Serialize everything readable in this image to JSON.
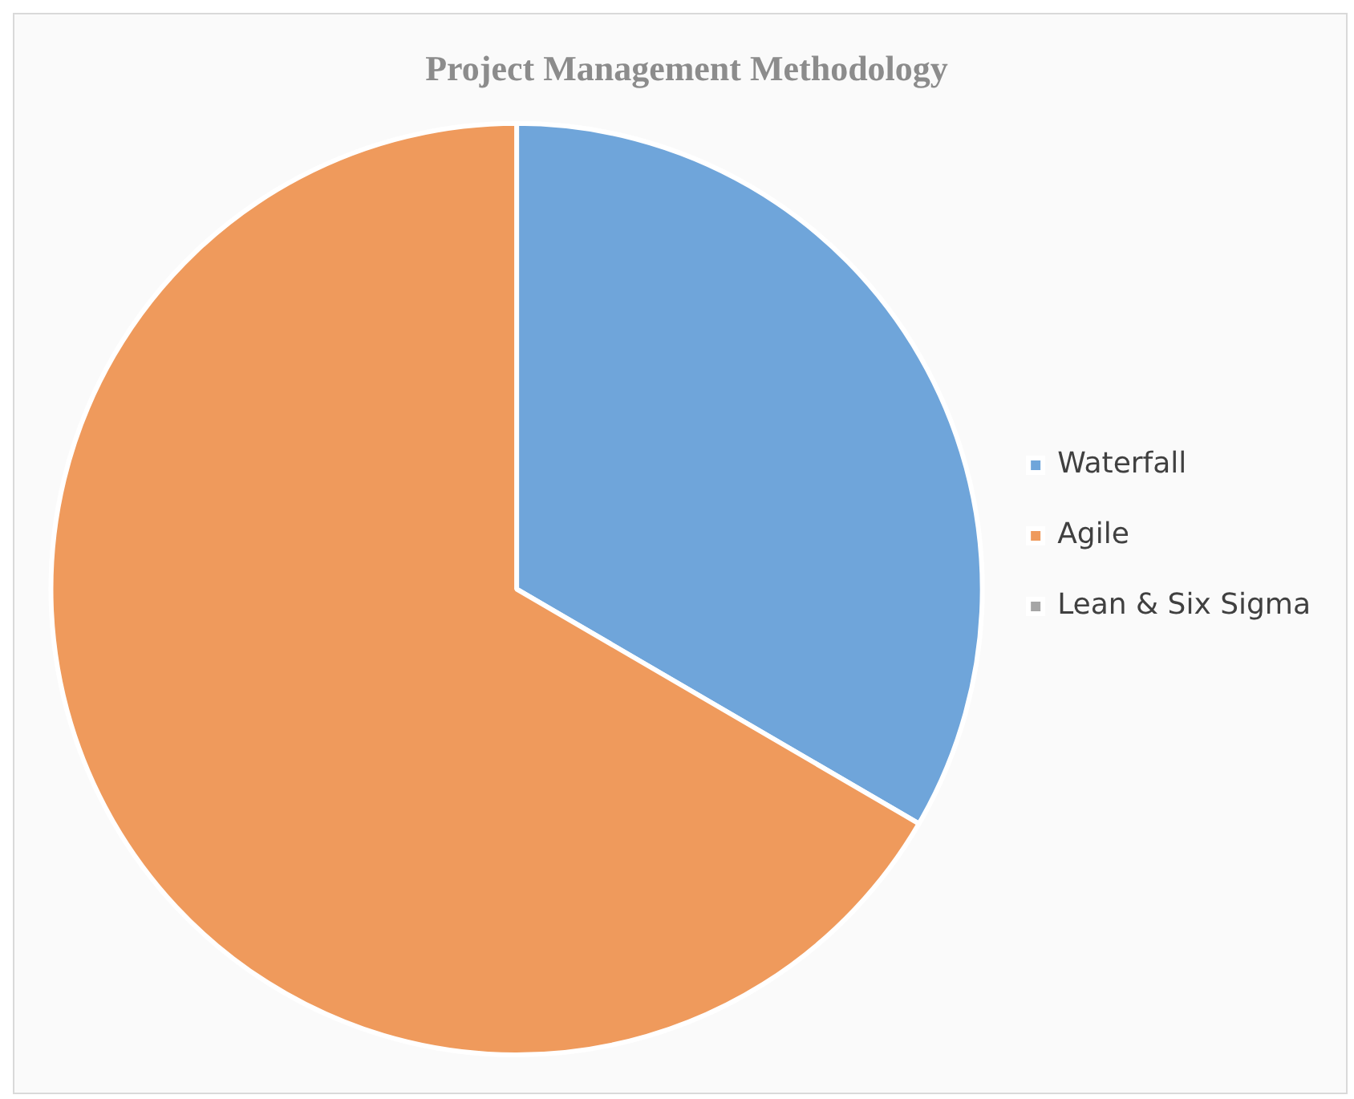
{
  "chart_data": {
    "type": "pie",
    "title": "Project Management Methodology",
    "categories": [
      "Waterfall",
      "Agile",
      "Lean & Six Sigma"
    ],
    "values": [
      33.4,
      66.6,
      0
    ],
    "colors": [
      "#6fa5da",
      "#ef9a5c",
      "#a5a5a5"
    ],
    "legend": "right"
  }
}
